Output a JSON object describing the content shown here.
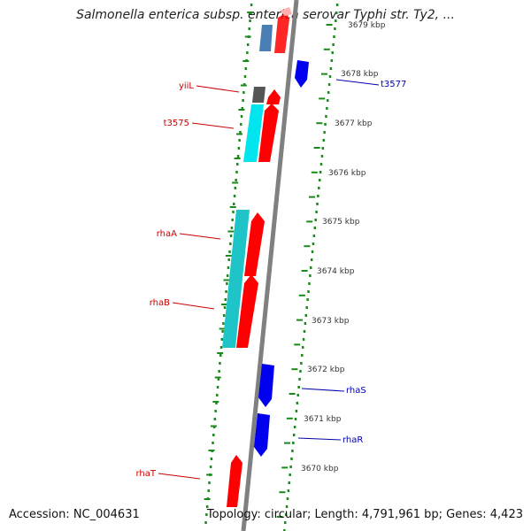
{
  "title": "Salmonella enterica subsp. enterica serovar Typhi str. Ty2, ...",
  "accession_text": "Accession: NC_004631",
  "summary_text": "Topology: circular; Length: 4,791,961 bp; Genes: 4,423",
  "colors": {
    "forward_gene": "#ff0000",
    "reverse_gene": "#0000ee",
    "forward_label": "#cc0000",
    "reverse_label": "#0000aa",
    "dotted_track": "#1a8a1a",
    "backbone": "#808080",
    "rna_cyan": "#00e5ee",
    "rna_teal": "#1fc4c8",
    "unknown_gray": "#555555",
    "steelblue": "#4a7fb5"
  },
  "scale_ticks": [
    {
      "label": "3679 kbp",
      "kbp": 3679
    },
    {
      "label": "3678 kbp",
      "kbp": 3678
    },
    {
      "label": "3677 kbp",
      "kbp": 3677
    },
    {
      "label": "3676 kbp",
      "kbp": 3676
    },
    {
      "label": "3675 kbp",
      "kbp": 3675
    },
    {
      "label": "3674 kbp",
      "kbp": 3674
    },
    {
      "label": "3673 kbp",
      "kbp": 3673
    },
    {
      "label": "3672 kbp",
      "kbp": 3672
    },
    {
      "label": "3671 kbp",
      "kbp": 3671
    },
    {
      "label": "3670 kbp",
      "kbp": 3670
    }
  ],
  "gene_labels": [
    {
      "name": "yiiL",
      "strand": "forward"
    },
    {
      "name": "t3575",
      "strand": "forward"
    },
    {
      "name": "rhaA",
      "strand": "forward"
    },
    {
      "name": "rhaB",
      "strand": "forward"
    },
    {
      "name": "rhaT",
      "strand": "forward"
    },
    {
      "name": "t3577",
      "strand": "reverse"
    },
    {
      "name": "rhaS",
      "strand": "reverse"
    },
    {
      "name": "rhaR",
      "strand": "reverse"
    }
  ]
}
